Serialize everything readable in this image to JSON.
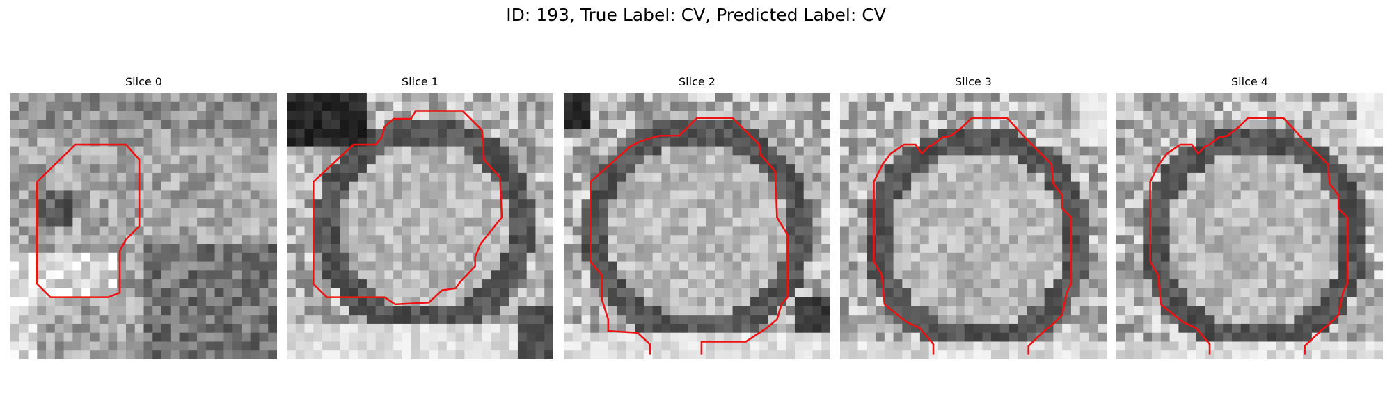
{
  "figure": {
    "title": "ID: 193, True Label: CV, Predicted Label: CV"
  },
  "panels": [
    {
      "title": "Slice 0",
      "pattern": "off-center lesion",
      "contour_color": "#ee1111"
    },
    {
      "title": "Slice 1",
      "pattern": "round lesion",
      "contour_color": "#ee1111"
    },
    {
      "title": "Slice 2",
      "pattern": "round lesion",
      "contour_color": "#ee1111"
    },
    {
      "title": "Slice 3",
      "pattern": "round lesion",
      "contour_color": "#ee1111"
    },
    {
      "title": "Slice 4",
      "pattern": "round lesion",
      "contour_color": "#ee1111"
    }
  ]
}
